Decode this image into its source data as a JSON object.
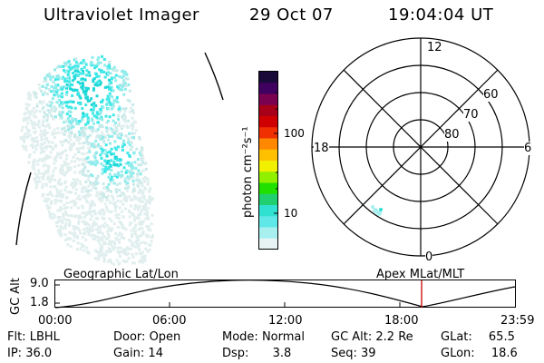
{
  "header": {
    "instrument": "Ultraviolet Imager",
    "date": "29 Oct 07",
    "time": "19:04:04 UT"
  },
  "colorbar": {
    "unit_label": "photon cm⁻²s⁻¹",
    "ticks": [
      "100",
      "10"
    ],
    "colors": [
      "#1a0a3a",
      "#400060",
      "#7a0050",
      "#a80018",
      "#d00000",
      "#f03000",
      "#ff8800",
      "#ffc000",
      "#f0f000",
      "#90f000",
      "#20e000",
      "#20d070",
      "#30e0d0",
      "#60e8e8",
      "#a8f0f0",
      "#e8f4f4"
    ]
  },
  "polar_plot": {
    "mlt_labels": {
      "top": "12",
      "left": "18",
      "right": "6",
      "bottom": "0"
    },
    "lat_labels": [
      "60",
      "70",
      "80"
    ]
  },
  "timeline": {
    "left_title": "Geographic Lat/Lon",
    "right_title": "Apex MLat/MLT",
    "ylabel": "GC Alt",
    "yticks": [
      "9.0",
      "1.8"
    ],
    "xticks": [
      "00:00",
      "06:00",
      "12:00",
      "18:00",
      "23:59"
    ],
    "marker_color": "#cc0000"
  },
  "status": {
    "row1": [
      {
        "label": "Flt:",
        "value": "LBHL"
      },
      {
        "label": "Door:",
        "value": "Open"
      },
      {
        "label": "Mode:",
        "value": "Normal"
      },
      {
        "label": "GC Alt:",
        "value": "2.2 Re"
      },
      {
        "label": "GLat:",
        "value": "65.5"
      }
    ],
    "row2": [
      {
        "label": "IP:",
        "value": "36.0"
      },
      {
        "label": "Gain:",
        "value": "14"
      },
      {
        "label": "Dsp:",
        "value": "3.8"
      },
      {
        "label": "Seq:",
        "value": "39"
      },
      {
        "label": "GLon:",
        "value": "18.6"
      }
    ]
  }
}
